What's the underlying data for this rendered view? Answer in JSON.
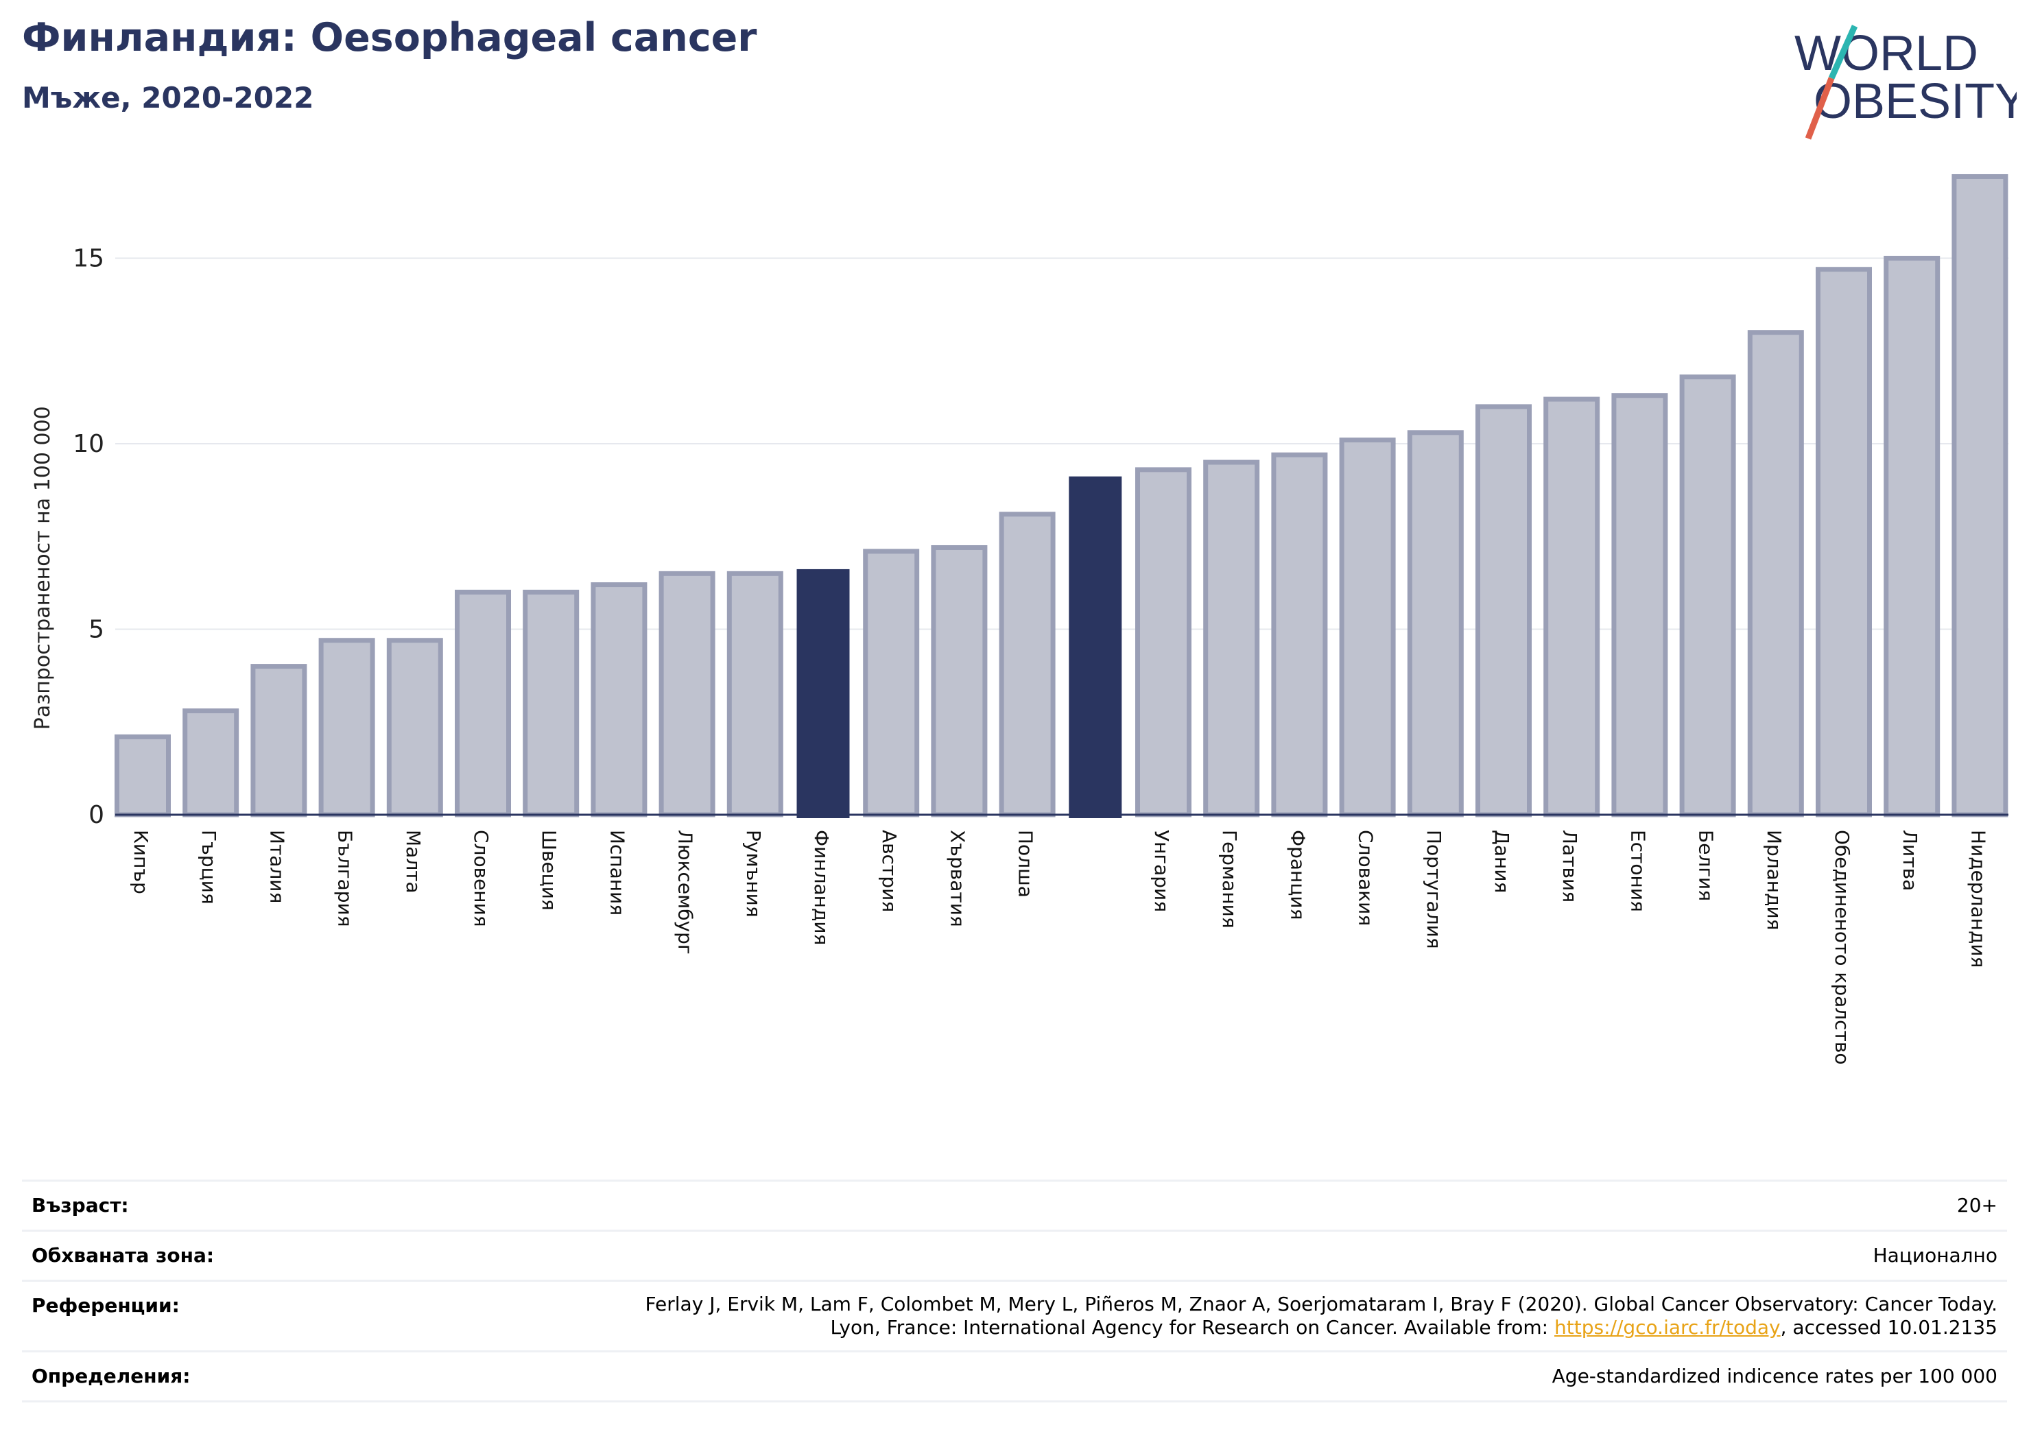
{
  "header": {
    "title": "Финландия: Oesophageal cancer",
    "subtitle": "Мъже, 2020-2022"
  },
  "logo": {
    "line1": "WORLD",
    "line2": "OBESITY"
  },
  "colors": {
    "highlight": "#2a3560",
    "bar_fill": "#bfc2cf",
    "bar_stroke": "#9a9fb6",
    "title": "#2a3560",
    "link": "#e8a317"
  },
  "chart_data": {
    "type": "bar",
    "ylabel": "Разпространеност  на 100 000",
    "ylim": [
      0,
      17.5
    ],
    "yticks": [
      0,
      5,
      10,
      15
    ],
    "grid": true,
    "highlighted": [
      "Финландия"
    ],
    "categories": [
      "Кипър",
      "Гърция",
      "Италия",
      "България",
      "Малта",
      "Словения",
      "Швеция",
      "Испания",
      "Люксембург",
      "Румъния",
      "Финландия",
      "Австрия",
      "Хърватия",
      "Полша",
      "",
      "Унгария",
      "Германия",
      "Франция",
      "Словакия",
      "Португалия",
      "Дания",
      "Латвия",
      "Естония",
      "Белгия",
      "Ирландия",
      "Обединеното кралство",
      "Литва",
      "Нидерландия"
    ],
    "values": [
      2.1,
      2.8,
      4.0,
      4.7,
      4.7,
      6.0,
      6.0,
      6.2,
      6.5,
      6.5,
      6.6,
      7.1,
      7.2,
      8.1,
      9.1,
      9.3,
      9.5,
      9.7,
      10.1,
      10.3,
      11.0,
      11.2,
      11.3,
      11.8,
      13.0,
      14.7,
      15.0,
      17.2
    ],
    "highlight_index": [
      10,
      14
    ]
  },
  "info": {
    "age_label": "Възраст:",
    "age_value": "20+",
    "area_label": "Обхваната зона:",
    "area_value": "Национално",
    "ref_label": "Референции:",
    "ref_line1": "Ferlay J, Ervik M, Lam F, Colombet M, Mery L, Piñeros M, Znaor A, Soerjomataram I, Bray F (2020). Global Cancer Observatory: Cancer Today.",
    "ref_line2_pre": "Lyon, France: International Agency for Research on Cancer. Available from: ",
    "ref_link": "https://gco.iarc.fr/today",
    "ref_line2_post": ", accessed 10.01.2135",
    "def_label": "Определения:",
    "def_value": "Age-standardized indicence rates per 100 000"
  }
}
